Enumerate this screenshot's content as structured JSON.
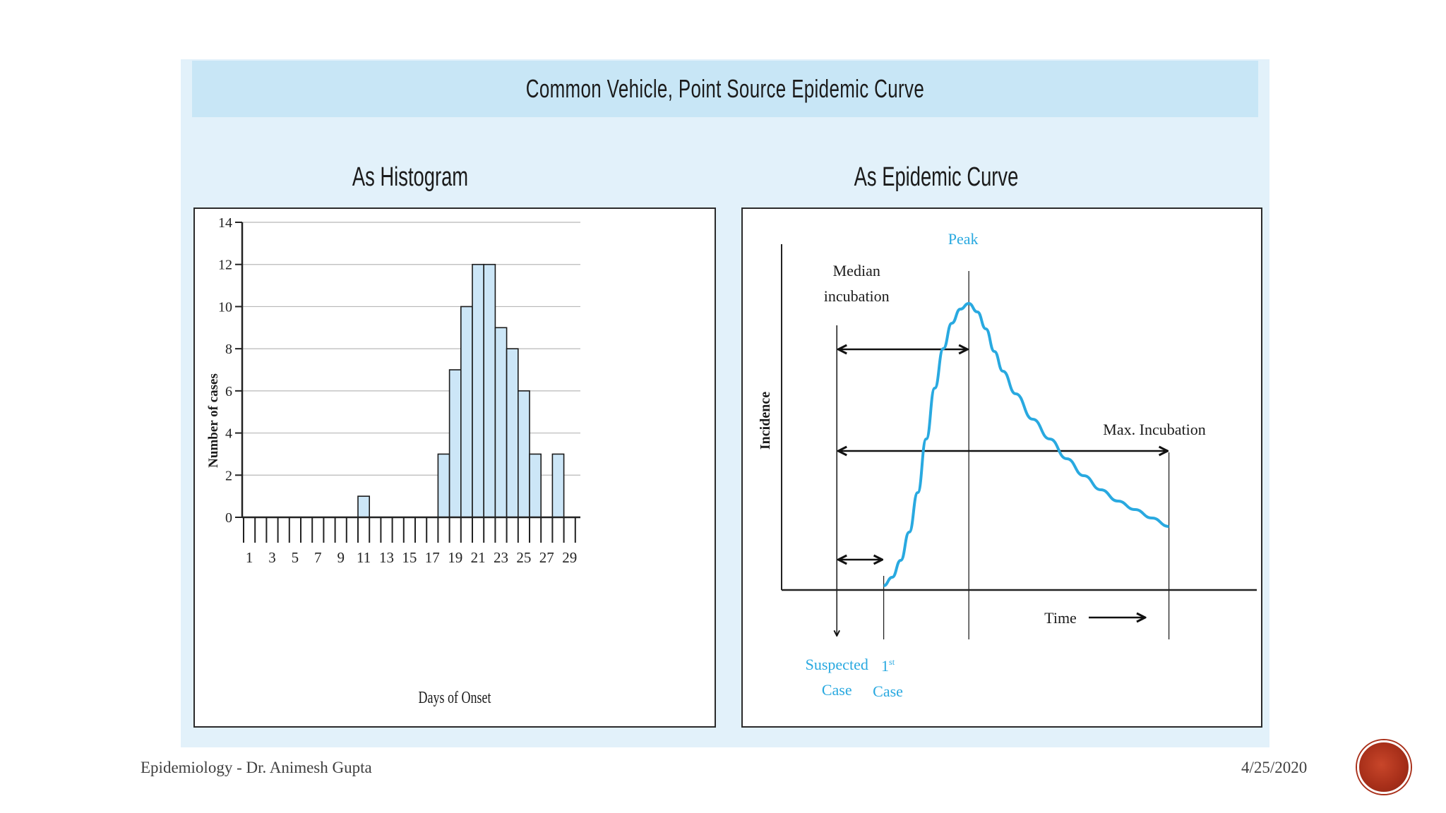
{
  "slide": {
    "main_title": "Common Vehicle, Point Source Epidemic Curve",
    "footer_left": "Epidemiology - Dr. Animesh Gupta",
    "footer_right": "4/25/2020"
  },
  "chart_data": [
    {
      "type": "bar",
      "title": "As Histogram",
      "xlabel": "Days of Onset",
      "ylabel": "Number of cases",
      "ylim": [
        0,
        14
      ],
      "yticks": [
        0,
        2,
        4,
        6,
        8,
        10,
        12,
        14
      ],
      "xtick_labels": [
        "1",
        "3",
        "5",
        "7",
        "9",
        "11",
        "13",
        "15",
        "17",
        "19",
        "21",
        "23",
        "25",
        "27",
        "29"
      ],
      "grid": true,
      "days": [
        1,
        2,
        3,
        4,
        5,
        6,
        7,
        8,
        9,
        10,
        11,
        12,
        13,
        14,
        15,
        16,
        17,
        18,
        19,
        20,
        21,
        22,
        23,
        24,
        25,
        26,
        27,
        28,
        29
      ],
      "values": [
        0,
        0,
        0,
        0,
        0,
        0,
        0,
        0,
        0,
        0,
        1,
        0,
        0,
        0,
        0,
        0,
        0,
        3,
        7,
        10,
        12,
        12,
        9,
        8,
        6,
        3,
        0,
        3,
        0
      ]
    },
    {
      "type": "line",
      "title": "As Epidemic Curve",
      "xlabel": "Time",
      "ylabel": "Incidence",
      "annotations": {
        "peak": "Peak",
        "median": "Median",
        "incubation": "incubation",
        "max_incubation": "Max. Incubation",
        "suspected": "Suspected",
        "case_word": "Case",
        "first_case_num": "1",
        "first_case_sup": "st"
      },
      "x_range": [
        0,
        100
      ],
      "y_range": [
        0,
        100
      ],
      "events": {
        "suspected_case": 8,
        "first_case": 19,
        "peak": 39,
        "max_incubation": 86
      },
      "curve": [
        [
          19,
          0
        ],
        [
          21,
          3
        ],
        [
          23,
          9
        ],
        [
          25,
          19
        ],
        [
          27,
          33
        ],
        [
          29,
          52
        ],
        [
          31,
          70
        ],
        [
          33,
          84
        ],
        [
          35,
          93
        ],
        [
          37,
          98
        ],
        [
          39,
          100
        ],
        [
          41,
          97
        ],
        [
          43,
          91
        ],
        [
          45,
          83
        ],
        [
          47,
          76
        ],
        [
          50,
          68
        ],
        [
          54,
          59
        ],
        [
          58,
          52
        ],
        [
          62,
          45
        ],
        [
          66,
          39
        ],
        [
          70,
          34
        ],
        [
          74,
          30
        ],
        [
          78,
          27
        ],
        [
          82,
          24
        ],
        [
          86,
          21
        ]
      ]
    }
  ]
}
